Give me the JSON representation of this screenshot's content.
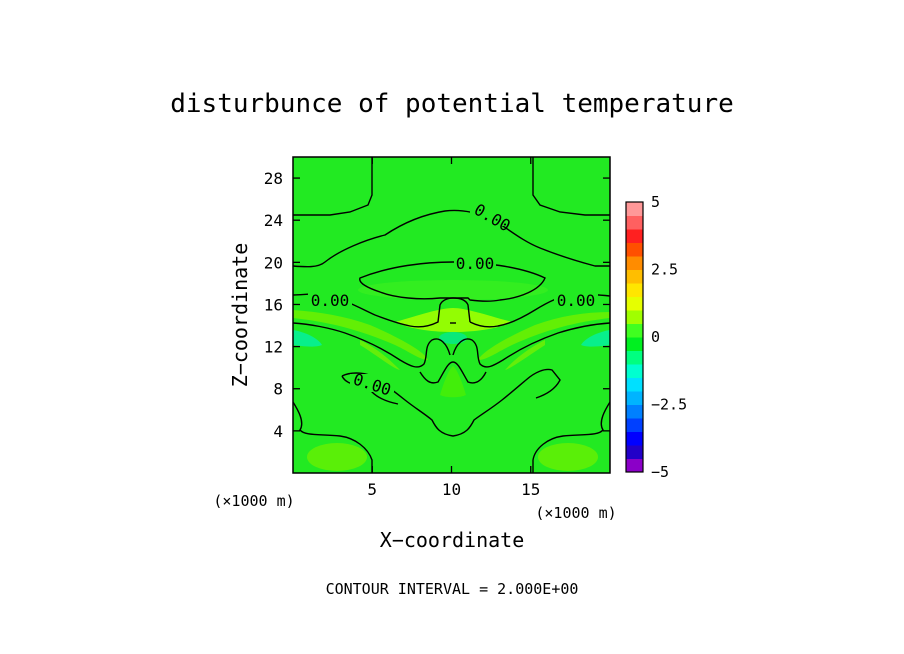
{
  "chart_data": {
    "type": "heatmap",
    "title": "disturbunce of potential temperature",
    "xlabel": "X−coordinate",
    "ylabel": "Z−coordinate",
    "x_unit_label": "(×1000 m)",
    "z_unit_label": "(×1000 m)",
    "xlim": [
      0,
      20
    ],
    "ylim": [
      0,
      30
    ],
    "x_ticks": [
      5,
      10,
      15
    ],
    "y_ticks": [
      4,
      8,
      12,
      16,
      20,
      24,
      28
    ],
    "contour_interval_text": "CONTOUR INTERVAL = 2.000E+00",
    "contour_labels": [
      {
        "text": "0.00",
        "x": 12.6,
        "z": 23.9,
        "angle": 30
      },
      {
        "text": "0.00",
        "x": 10.5,
        "z": 19.6,
        "angle": 0
      },
      {
        "text": "0.00",
        "x": 2.3,
        "z": 16.3,
        "angle": 0
      },
      {
        "text": "0.00",
        "x": 17.5,
        "z": 16.3,
        "angle": 0
      },
      {
        "text": "0.00",
        "x": 4.9,
        "z": 7.7,
        "angle": 18
      }
    ],
    "colorbar": {
      "min": -5,
      "max": 5,
      "tick_values": [
        5,
        2.5,
        0,
        -2.5,
        -5
      ],
      "tick_labels": [
        "5",
        "2.5",
        "0",
        "−2.5",
        "−5"
      ],
      "level_colors": [
        "#8b00c8",
        "#2200c8",
        "#0000ff",
        "#0040ff",
        "#0080ff",
        "#00b4ff",
        "#00e0ff",
        "#00ffd0",
        "#00ff80",
        "#00f020",
        "#40ff20",
        "#a0ff00",
        "#e6ff00",
        "#ffe600",
        "#ffbe00",
        "#ff8c00",
        "#ff5000",
        "#ff2020",
        "#ff6060",
        "#ff9898"
      ]
    },
    "field_features": [
      {
        "kind": "dominant",
        "value": 0.3,
        "color": "#22e622"
      },
      {
        "kind": "warm-band",
        "x_range": [
          0,
          20
        ],
        "z_range": [
          11,
          17
        ],
        "value": 1.2
      },
      {
        "kind": "cold-patch",
        "x_range": [
          0,
          2
        ],
        "z_range": [
          11.5,
          14
        ],
        "value": -1.0
      }
    ]
  }
}
